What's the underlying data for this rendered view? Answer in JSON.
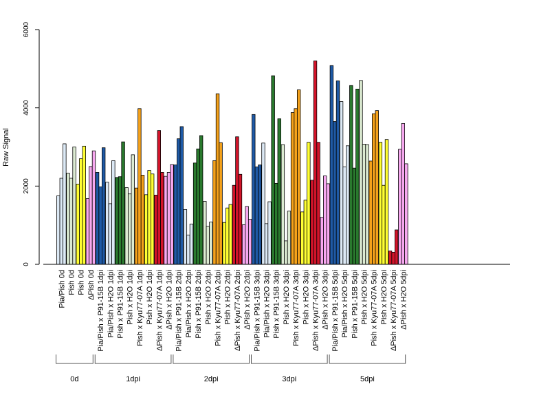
{
  "chart_data": {
    "type": "bar",
    "ylabel": "Raw Signal",
    "ylim": [
      0,
      6000
    ],
    "yticks": [
      "0",
      "2000",
      "4000",
      "6000"
    ],
    "grid": false,
    "bars_per_category": 3,
    "categories": [
      "Pia/Pish 0d",
      "Pish 0d",
      "Pish 0d",
      "ΔPish 0d",
      "Pia/Pish x P91-15B 1dpi",
      "Pia/Pish x H2O 1dpi",
      "Pish x P91-15B 1dpi",
      "Pish x H2O 1dpi",
      "Pish x Kyu77-07A 1dpi",
      "Pish x H2O 1dpi",
      "ΔPish x Kyu77-07A 1dpi",
      "ΔPish x H2O 1dpi",
      "Pia/Pish x P91-15B 2dpi",
      "Pia/Pish x H2O 2dpi",
      "Pish x P91-15B 2dpi",
      "Pish x H2O 2dpi",
      "Pish x Kyu77-07A 2dpi",
      "Pish x H2O 2dpi",
      "ΔPish x Kyu77-07A 2dpi",
      "ΔPish x H2O 2dpi",
      "Pia/Pish x P91-15B 3dpi",
      "Pia/Pish x H2O 3dpi",
      "Pish x P91-15B 3dpi",
      "Pish x H2O 3dpi",
      "Pish x Kyu77-07A 3dpi",
      "Pish x H2O 3dpi",
      "ΔPish x Kyu77-07A 3dpi",
      "ΔPish x H2O 3dpi",
      "Pia/Pish x P91-15B 5dpi",
      "Pia/Pish x H2O 5dpi",
      "Pish x P91-15B 5dpi",
      "Pish x H2O 5dpi",
      "Pish x Kyu77-07A 5dpi",
      "Pish x H2O 5dpi",
      "ΔPish x Kyu77-07A 5dpi",
      "ΔPish x H2O 5dpi"
    ],
    "category_colors": [
      "#dce9f5",
      "#dcebd2",
      "#ffff33",
      "#f7a8f0",
      "#1f5aa6",
      "#dce9f5",
      "#2a7a2e",
      "#dcebd2",
      "#f5a21b",
      "#ffff33",
      "#d2142a",
      "#f7a8f0",
      "#1f5aa6",
      "#dce9f5",
      "#2a7a2e",
      "#dcebd2",
      "#f5a21b",
      "#ffff33",
      "#d2142a",
      "#f7a8f0",
      "#1f5aa6",
      "#dce9f5",
      "#2a7a2e",
      "#dcebd2",
      "#f5a21b",
      "#ffff33",
      "#d2142a",
      "#f7a8f0",
      "#1f5aa6",
      "#dce9f5",
      "#2a7a2e",
      "#dcebd2",
      "#f5a21b",
      "#ffff33",
      "#d2142a",
      "#f7a8f0"
    ],
    "values": [
      [
        1750,
        2200,
        3080
      ],
      [
        2330,
        2200,
        3000
      ],
      [
        2050,
        2700,
        3020
      ],
      [
        1680,
        2500,
        2900
      ],
      [
        2350,
        1980,
        2980
      ],
      [
        2100,
        1550,
        2650
      ],
      [
        2220,
        2240,
        3130
      ],
      [
        1960,
        1800,
        2800
      ],
      [
        1950,
        3980,
        2280
      ],
      [
        1780,
        2400,
        2310
      ],
      [
        1770,
        3420,
        2350
      ],
      [
        2250,
        2350,
        2550
      ],
      [
        2540,
        3210,
        3520
      ],
      [
        1400,
        750,
        1030
      ],
      [
        2590,
        2950,
        3290
      ],
      [
        1610,
        970,
        1080
      ],
      [
        2650,
        4360,
        3110
      ],
      [
        1070,
        1440,
        1530
      ],
      [
        2020,
        3260,
        2300
      ],
      [
        1010,
        1480,
        1150
      ],
      [
        3830,
        2490,
        2540
      ],
      [
        3100,
        1040,
        1600
      ],
      [
        4820,
        2070,
        3720
      ],
      [
        3060,
        600,
        1360
      ],
      [
        3880,
        3980,
        4460
      ],
      [
        1340,
        1640,
        3120
      ],
      [
        2150,
        5200,
        3120
      ],
      [
        1200,
        2260,
        2060
      ],
      [
        5080,
        3650,
        4690
      ],
      [
        4160,
        2490,
        3030
      ],
      [
        4570,
        2460,
        4480
      ],
      [
        4700,
        3070,
        3060
      ],
      [
        2640,
        3850,
        3930
      ],
      [
        3120,
        2020,
        3190
      ],
      [
        340,
        310,
        880
      ],
      [
        2940,
        3600,
        2570
      ]
    ],
    "groups": [
      {
        "label": "0d",
        "first": 0,
        "last": 3
      },
      {
        "label": "1dpi",
        "first": 4,
        "last": 11
      },
      {
        "label": "2dpi",
        "first": 12,
        "last": 19
      },
      {
        "label": "3dpi",
        "first": 20,
        "last": 27
      },
      {
        "label": "5dpi",
        "first": 28,
        "last": 35
      }
    ]
  }
}
